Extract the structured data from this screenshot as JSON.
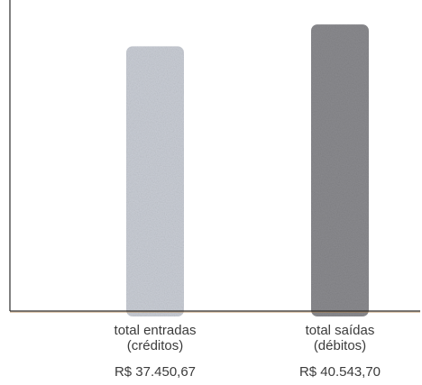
{
  "chart_data": {
    "type": "bar",
    "categories": [
      [
        "total entradas",
        "(créditos)"
      ],
      [
        "total saídas",
        "(débitos)"
      ]
    ],
    "values": [
      37450.67,
      40543.7
    ],
    "value_labels": [
      "R$ 37.450,67",
      "R$ 40.543,70"
    ],
    "title": "",
    "xlabel": "",
    "ylabel": "",
    "ylim": [
      0,
      44000
    ],
    "grid": false,
    "legend": "none",
    "colors": {
      "bar_light": "#c9cdd5",
      "bar_dark": "#8a8a8e",
      "axis": "#2b2b2b",
      "baseline_accent": "#b07a3a"
    }
  }
}
